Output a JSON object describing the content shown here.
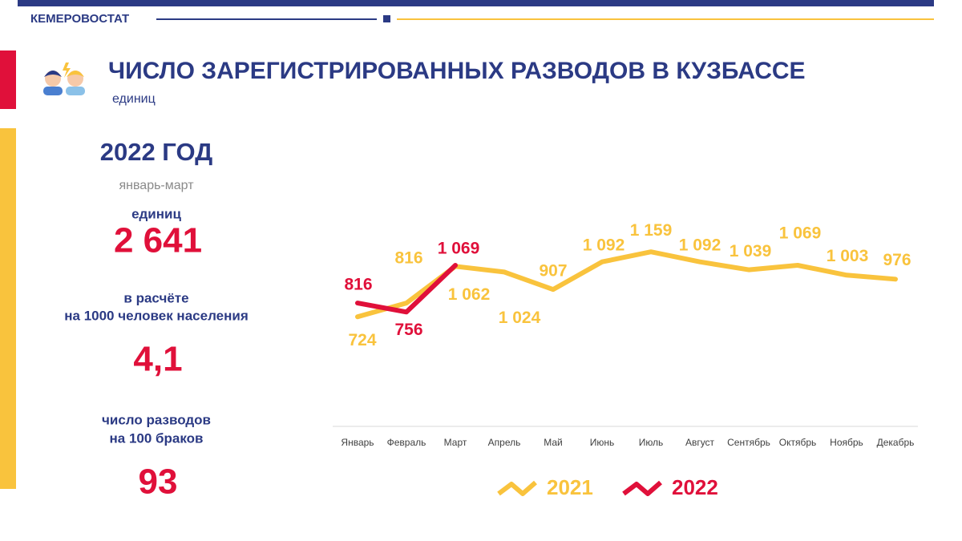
{
  "header": {
    "org": "КЕМЕРОВОСТАТ",
    "title": "ЧИСЛО ЗАРЕГИСТРИРОВАННЫХ РАЗВОДОВ В КУЗБАССЕ",
    "unit": "единиц"
  },
  "summary": {
    "year": "2022 ГОД",
    "period": "январь-март",
    "total_label": "единиц",
    "total": "2 641",
    "rate_label_1": "в расчёте",
    "rate_label_2": "на 1000 человек населения",
    "rate": "4,1",
    "ratio_label_1": "число разводов",
    "ratio_label_2": "на 100 браков",
    "ratio": "93"
  },
  "chart_data": {
    "type": "line",
    "categories": [
      "Январь",
      "Февраль",
      "Март",
      "Апрель",
      "Май",
      "Июнь",
      "Июль",
      "Август",
      "Сентябрь",
      "Октябрь",
      "Ноябрь",
      "Декабрь"
    ],
    "ylim": [
      0,
      1300
    ],
    "series": [
      {
        "name": "2021",
        "color": "#F9C33D",
        "values": [
          724,
          816,
          1062,
          1024,
          907,
          1092,
          1159,
          1092,
          1039,
          1069,
          1003,
          976
        ],
        "value_labels": [
          "724",
          "816",
          "1 062",
          "1 024",
          "907",
          "1 092",
          "1 159",
          "1 092",
          "1 039",
          "1 069",
          "1 003",
          "976"
        ]
      },
      {
        "name": "2022",
        "color": "#E0103A",
        "values": [
          816,
          756,
          1069,
          null,
          null,
          null,
          null,
          null,
          null,
          null,
          null,
          null
        ],
        "value_labels": [
          "816",
          "756",
          "1 069",
          null,
          null,
          null,
          null,
          null,
          null,
          null,
          null,
          null
        ]
      }
    ]
  }
}
